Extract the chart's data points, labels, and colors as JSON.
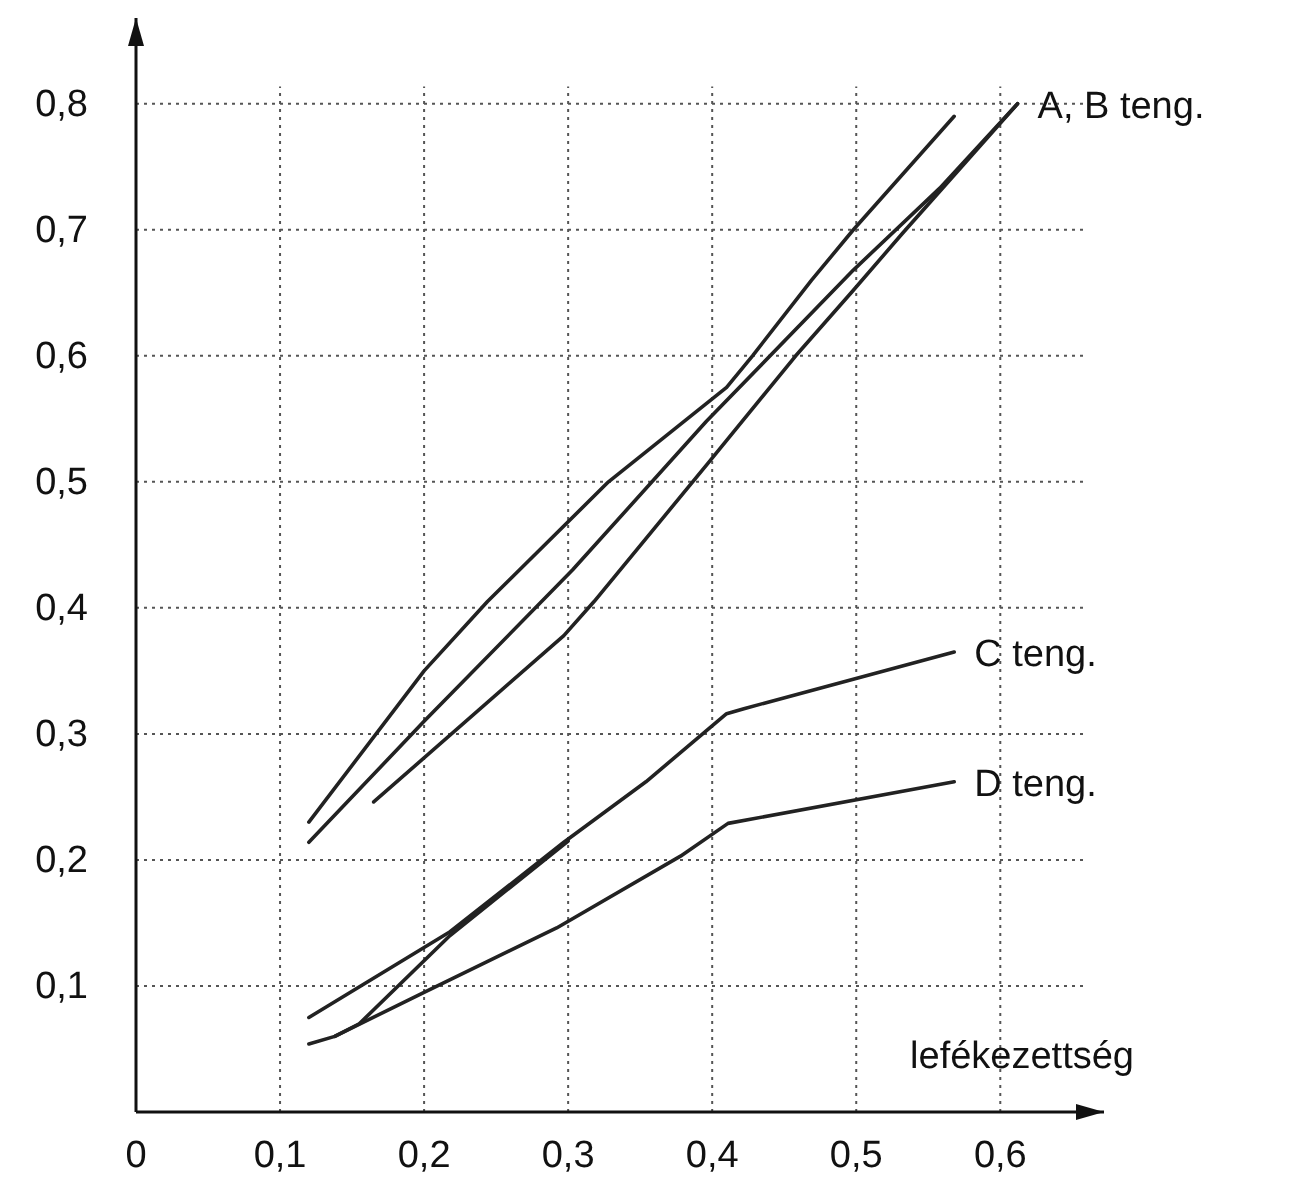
{
  "chart_data": {
    "type": "line",
    "xlabel": "lefékezettség",
    "x": [
      0.12,
      0.2,
      0.303,
      0.396,
      0.498,
      0.558,
      0.612
    ],
    "xlim": [
      0,
      0.672
    ],
    "ylim": [
      0,
      0.868
    ],
    "xticks": [
      {
        "value": 0,
        "label": "0"
      },
      {
        "value": 0.1,
        "label": "0,1"
      },
      {
        "value": 0.2,
        "label": "0,2"
      },
      {
        "value": 0.3,
        "label": "0,3"
      },
      {
        "value": 0.4,
        "label": "0,4"
      },
      {
        "value": 0.5,
        "label": "0,5"
      },
      {
        "value": 0.6,
        "label": "0,6"
      }
    ],
    "yticks": [
      {
        "value": 0.1,
        "label": "0,1"
      },
      {
        "value": 0.2,
        "label": "0,2"
      },
      {
        "value": 0.3,
        "label": "0,3"
      },
      {
        "value": 0.4,
        "label": "0,4"
      },
      {
        "value": 0.5,
        "label": "0,5"
      },
      {
        "value": 0.6,
        "label": "0,6"
      },
      {
        "value": 0.7,
        "label": "0,7"
      },
      {
        "value": 0.8,
        "label": "0,8"
      }
    ],
    "grid": true,
    "marker": "none",
    "line_style": "solid",
    "series": [
      {
        "name": "A, B teng.",
        "color": "#222222",
        "values": [
          0.214,
          0.31,
          0.43,
          0.548,
          0.668,
          0.733,
          0.8
        ]
      },
      {
        "color": "#222222",
        "x": [
          0.12,
          0.2,
          0.244,
          0.328,
          0.41,
          0.428,
          0.469,
          0.498,
          0.568
        ],
        "values": [
          0.23,
          0.35,
          0.405,
          0.5,
          0.575,
          0.6,
          0.66,
          0.7,
          0.79
        ]
      },
      {
        "color": "#222222",
        "x": [
          0.165,
          0.297,
          0.318,
          0.398,
          0.458,
          0.498,
          0.532,
          0.612
        ],
        "values": [
          0.246,
          0.378,
          0.405,
          0.516,
          0.6,
          0.652,
          0.697,
          0.8
        ]
      },
      {
        "name": "C teng.",
        "color": "#222222",
        "x": [
          0.12,
          0.218,
          0.297,
          0.354,
          0.41,
          0.422,
          0.568
        ],
        "values": [
          0.075,
          0.143,
          0.214,
          0.262,
          0.316,
          0.32,
          0.365
        ]
      },
      {
        "color": "#222222",
        "x": [
          0.138,
          0.155,
          0.218,
          0.3
        ],
        "values": [
          0.06,
          0.07,
          0.14,
          0.215
        ]
      },
      {
        "name": "D teng.",
        "color": "#222222",
        "x": [
          0.12,
          0.138,
          0.2,
          0.292,
          0.378,
          0.411,
          0.568
        ],
        "values": [
          0.054,
          0.06,
          0.095,
          0.146,
          0.203,
          0.229,
          0.262
        ]
      }
    ]
  }
}
